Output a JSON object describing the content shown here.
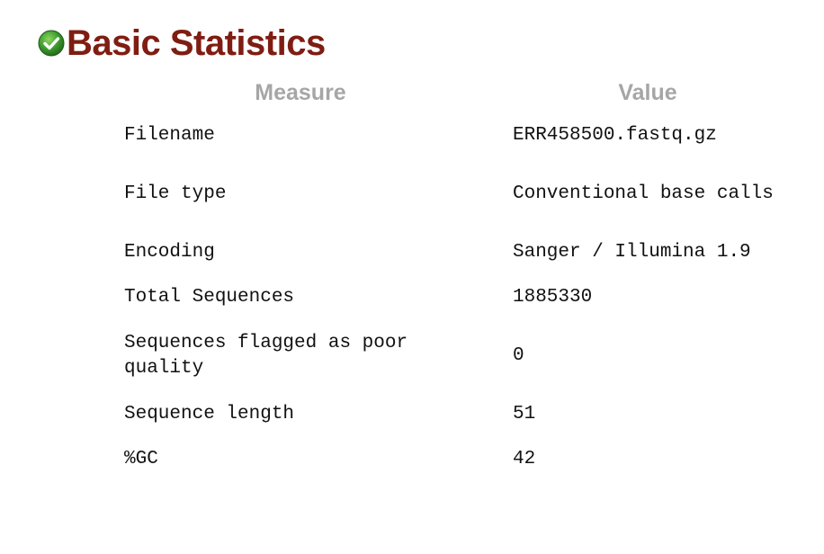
{
  "module": {
    "title": "Basic Statistics",
    "status": "pass",
    "status_icon": "check-circle-icon",
    "status_color": "#3c9b2e",
    "title_color": "#7f1d12"
  },
  "table": {
    "headers": {
      "measure": "Measure",
      "value": "Value"
    },
    "rows": [
      {
        "measure": "Filename",
        "value": "ERR458500.fastq.gz"
      },
      {
        "measure": "File type",
        "value": "Conventional base calls"
      },
      {
        "measure": "Encoding",
        "value": "Sanger / Illumina 1.9"
      },
      {
        "measure": "Total Sequences",
        "value": "1885330"
      },
      {
        "measure": "Sequences flagged as poor quality",
        "value": "0"
      },
      {
        "measure": "Sequence length",
        "value": "51"
      },
      {
        "measure": "%GC",
        "value": "42"
      }
    ]
  }
}
